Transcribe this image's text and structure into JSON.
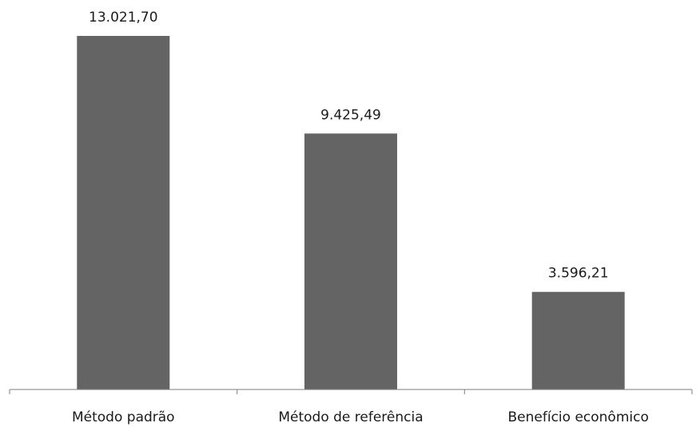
{
  "chart_data": {
    "type": "bar",
    "categories": [
      "Método padrão",
      "Método de referência",
      "Benefício econômico"
    ],
    "values": [
      13021.7,
      9425.49,
      3596.21
    ],
    "value_labels": [
      "13.021,70",
      "9.425,49",
      "3.596,21"
    ],
    "title": "",
    "xlabel": "",
    "ylabel": "",
    "ylim": [
      0,
      13021.7
    ],
    "grid": false,
    "legend": "none",
    "bar_color": "#646464",
    "axis_color": "#7f7f7f"
  }
}
